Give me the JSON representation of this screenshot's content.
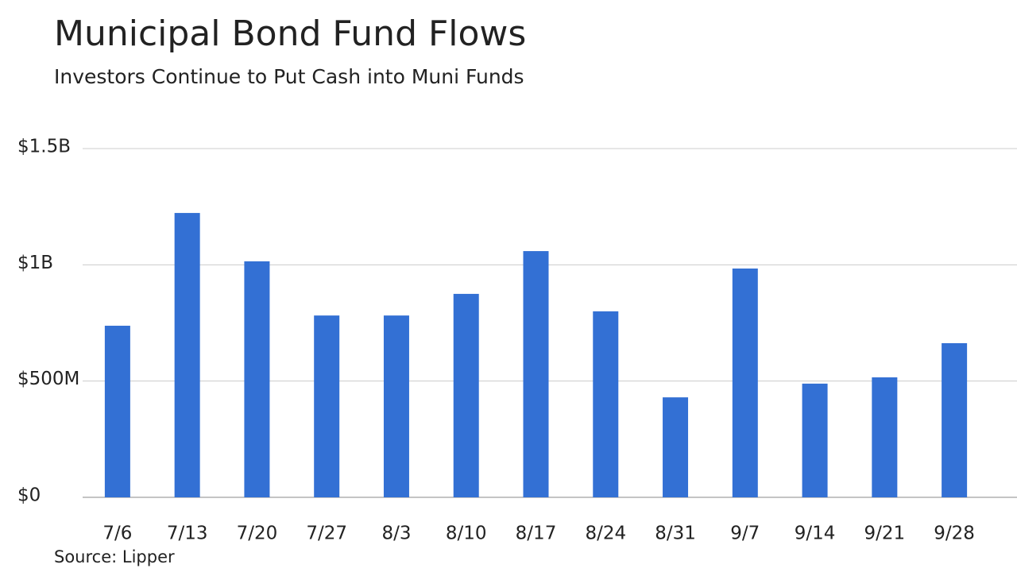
{
  "chart_data": {
    "type": "bar",
    "title": "Municipal Bond Fund Flows",
    "subtitle": "Investors Continue to Put Cash into Muni Funds",
    "source": "Source: Lipper",
    "categories": [
      "7/6",
      "7/13",
      "7/20",
      "7/27",
      "8/3",
      "8/10",
      "8/17",
      "8/24",
      "8/31",
      "9/7",
      "9/14",
      "9/21",
      "9/28"
    ],
    "values": [
      738000000,
      1223000000,
      1015000000,
      782000000,
      782000000,
      875000000,
      1059000000,
      800000000,
      430000000,
      984000000,
      489000000,
      516000000,
      663000000
    ],
    "color": "#3370d4",
    "ylim": [
      0,
      1500000000
    ],
    "yticks": [
      {
        "value": 0,
        "label": "$0"
      },
      {
        "value": 500000000,
        "label": "$500M"
      },
      {
        "value": 1000000000,
        "label": "$1B"
      },
      {
        "value": 1500000000,
        "label": "$1.5B"
      }
    ],
    "grid": true
  }
}
